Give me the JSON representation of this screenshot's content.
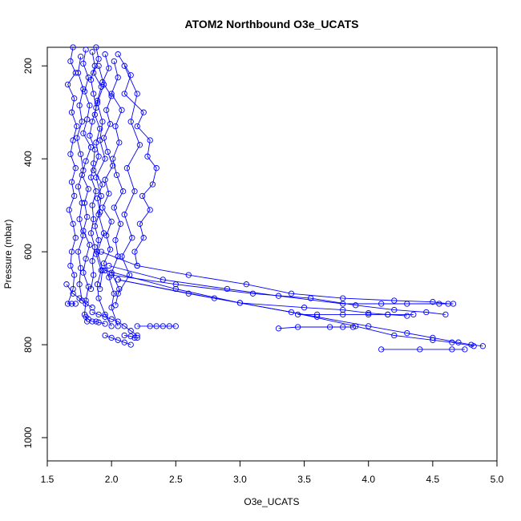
{
  "chart_data": {
    "type": "line",
    "title": "ATOM2 Northbound O3e_UCATS",
    "xlabel": "O3e_UCATS",
    "ylabel": "Pressure (mbar)",
    "xlim": [
      1.5,
      5.0
    ],
    "ylim": [
      1050,
      160
    ],
    "y_reversed": true,
    "x_ticks": [
      "1.5",
      "2.0",
      "2.5",
      "3.0",
      "3.5",
      "4.0",
      "4.5",
      "5.0"
    ],
    "y_ticks": [
      "200",
      "400",
      "600",
      "800",
      "1000"
    ],
    "series_color": "#0000ff",
    "marker": "open-circle",
    "grid": false,
    "legend": "none",
    "series": [
      {
        "x": [
          1.7,
          1.68,
          1.72,
          1.66,
          1.71,
          1.69,
          1.73,
          1.7,
          1.68,
          1.72,
          1.69,
          1.71,
          1.67,
          1.7,
          1.72,
          1.69,
          1.68,
          1.71,
          1.7,
          1.66,
          1.69,
          1.72
        ],
        "y": [
          160,
          190,
          215,
          240,
          270,
          300,
          330,
          360,
          390,
          420,
          450,
          480,
          510,
          540,
          570,
          600,
          630,
          650,
          680,
          712,
          712,
          712
        ]
      },
      {
        "x": [
          1.8,
          1.78,
          1.82,
          1.79,
          1.83,
          1.81,
          1.78,
          1.84,
          1.8,
          1.77,
          1.82,
          1.79,
          1.81,
          1.78,
          1.83,
          1.8,
          1.78,
          1.82,
          1.8,
          1.79,
          1.81
        ],
        "y": [
          165,
          195,
          225,
          255,
          285,
          315,
          345,
          375,
          405,
          435,
          465,
          495,
          525,
          555,
          585,
          615,
          645,
          675,
          705,
          735,
          750
        ]
      },
      {
        "x": [
          1.88,
          1.9,
          1.86,
          1.92,
          1.89,
          1.87,
          1.91,
          1.88,
          1.9,
          1.86,
          1.93,
          1.89,
          1.91,
          1.87,
          1.9,
          1.88,
          1.92,
          1.89,
          1.9,
          1.95,
          2.0
        ],
        "y": [
          160,
          185,
          215,
          245,
          275,
          305,
          335,
          365,
          395,
          425,
          455,
          485,
          515,
          545,
          575,
          605,
          640,
          670,
          700,
          735,
          760
        ]
      },
      {
        "x": [
          1.95,
          1.98,
          1.93,
          2.0,
          1.96,
          1.99,
          1.94,
          1.97,
          2.01,
          1.95,
          1.98,
          1.93,
          2.0,
          1.96,
          1.99,
          1.94,
          1.98,
          2.02,
          2.0,
          2.05
        ],
        "y": [
          175,
          205,
          235,
          265,
          295,
          325,
          355,
          385,
          415,
          445,
          475,
          505,
          535,
          565,
          595,
          625,
          655,
          690,
          720,
          760
        ]
      },
      {
        "x": [
          1.85,
          1.87,
          1.84,
          1.86,
          1.88,
          1.85,
          1.83,
          1.87,
          1.86,
          1.84,
          1.88,
          1.85,
          1.86,
          1.84,
          1.87,
          1.85,
          1.86,
          1.84
        ],
        "y": [
          170,
          200,
          230,
          260,
          290,
          320,
          350,
          380,
          410,
          440,
          470,
          500,
          530,
          560,
          590,
          620,
          650,
          680
        ]
      },
      {
        "x": [
          1.76,
          1.74,
          1.78,
          1.75,
          1.77,
          1.73,
          1.76,
          1.78,
          1.74,
          1.77,
          1.75,
          1.78,
          1.74,
          1.76,
          1.75,
          1.77
        ],
        "y": [
          180,
          215,
          250,
          285,
          320,
          355,
          390,
          425,
          460,
          495,
          530,
          565,
          600,
          635,
          670,
          705
        ]
      },
      {
        "x": [
          2.02,
          2.05,
          2.0,
          2.08,
          2.03,
          2.06,
          2.01,
          2.04,
          2.09,
          2.02,
          2.07,
          2.03,
          2.05,
          2.0,
          2.06,
          2.03
        ],
        "y": [
          190,
          225,
          260,
          295,
          330,
          365,
          400,
          435,
          470,
          505,
          540,
          575,
          610,
          645,
          680,
          715
        ]
      },
      {
        "x": [
          2.05,
          2.15,
          2.1,
          2.25,
          2.2,
          2.3,
          2.28,
          2.35,
          2.32,
          2.24,
          2.3,
          2.22,
          2.25,
          2.18,
          2.2
        ],
        "y": [
          175,
          220,
          260,
          300,
          330,
          360,
          395,
          420,
          455,
          480,
          510,
          540,
          570,
          600,
          630
        ]
      },
      {
        "x": [
          2.1,
          2.2,
          2.15,
          2.22,
          2.12,
          2.18,
          2.1,
          2.16,
          2.08,
          2.14,
          2.05
        ],
        "y": [
          200,
          260,
          320,
          370,
          420,
          470,
          520,
          570,
          610,
          650,
          690
        ]
      },
      {
        "x": [
          1.9,
          1.94,
          1.89,
          1.93,
          1.91,
          1.95,
          1.88,
          1.92,
          1.9,
          1.94,
          1.89,
          1.93,
          1.91
        ],
        "y": [
          200,
          240,
          280,
          320,
          360,
          400,
          440,
          480,
          520,
          560,
          600,
          640,
          680
        ]
      },
      {
        "x": [
          1.92,
          2.2,
          2.6,
          3.05,
          3.4,
          3.8,
          4.2,
          4.5,
          4.62
        ],
        "y": [
          600,
          630,
          650,
          670,
          690,
          700,
          705,
          708,
          712
        ]
      },
      {
        "x": [
          1.98,
          2.4,
          2.9,
          3.3,
          3.8,
          4.1,
          4.3,
          4.55,
          4.66
        ],
        "y": [
          630,
          660,
          680,
          695,
          712,
          712,
          712,
          712,
          712
        ]
      },
      {
        "x": [
          2.0,
          2.5,
          3.1,
          3.55,
          3.9,
          4.2,
          4.45,
          4.6
        ],
        "y": [
          650,
          670,
          690,
          700,
          715,
          725,
          730,
          735
        ]
      },
      {
        "x": [
          2.05,
          2.6,
          3.0,
          3.5,
          3.8,
          4.0,
          4.15,
          4.3
        ],
        "y": [
          660,
          690,
          710,
          720,
          725,
          732,
          735,
          738
        ]
      },
      {
        "x": [
          1.95,
          2.5,
          3.0,
          3.6,
          4.0,
          4.3,
          4.5,
          4.7,
          4.8,
          4.89
        ],
        "y": [
          640,
          680,
          710,
          740,
          760,
          775,
          785,
          795,
          800,
          803
        ]
      },
      {
        "x": [
          2.05,
          2.8,
          3.4,
          3.9,
          4.2,
          4.5,
          4.65,
          4.82
        ],
        "y": [
          660,
          700,
          730,
          760,
          780,
          790,
          795,
          803
        ]
      },
      {
        "x": [
          3.3,
          3.45,
          3.7,
          3.8,
          3.88
        ],
        "y": [
          765,
          762,
          762,
          762,
          762
        ]
      },
      {
        "x": [
          4.1,
          4.4,
          4.65,
          4.75
        ],
        "y": [
          810,
          810,
          810,
          810
        ]
      },
      {
        "x": [
          3.45,
          3.6,
          3.8,
          4.0,
          4.15,
          4.35
        ],
        "y": [
          735,
          735,
          735,
          735,
          735,
          735
        ]
      },
      {
        "x": [
          2.2,
          2.3,
          2.35,
          2.4,
          2.45,
          2.5
        ],
        "y": [
          760,
          760,
          760,
          760,
          760,
          760
        ]
      },
      {
        "x": [
          1.85,
          1.9,
          1.95,
          2.0,
          2.05,
          2.1,
          2.15,
          2.2
        ],
        "y": [
          730,
          735,
          740,
          745,
          750,
          760,
          770,
          780
        ]
      },
      {
        "x": [
          1.95,
          2.0,
          2.05,
          2.1,
          2.15
        ],
        "y": [
          780,
          785,
          790,
          795,
          800
        ]
      },
      {
        "x": [
          1.8,
          1.82,
          1.85,
          1.88,
          1.9,
          1.95
        ],
        "y": [
          740,
          745,
          750,
          750,
          752,
          755
        ]
      },
      {
        "x": [
          2.1,
          2.15,
          2.18,
          2.2
        ],
        "y": [
          780,
          782,
          785,
          785
        ]
      },
      {
        "x": [
          1.65,
          1.7,
          1.75,
          1.8,
          1.85
        ],
        "y": [
          670,
          690,
          700,
          712,
          720
        ]
      }
    ]
  }
}
